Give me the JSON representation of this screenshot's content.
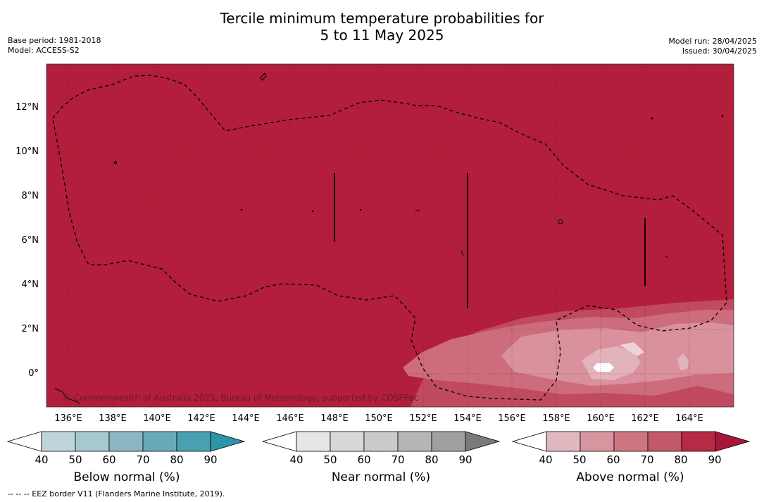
{
  "title_line1": "Tercile minimum temperature probabilities for",
  "title_line2": "5 to 11 May 2025",
  "base_period": "Base period: 1981-2018",
  "model": "Model: ACCESS-S2",
  "model_run": "Model run: 28/04/2025",
  "issued": "Issued: 30/04/2025",
  "copyright": "© Commonwealth of Australia 2025, Bureau of Meteorology, supported by COSPPac",
  "footnote": "--  --  -- EEZ border V11 (Flanders Marine Institute, 2019).",
  "lat_ticks": [
    "12°N",
    "10°N",
    "8°N",
    "6°N",
    "4°N",
    "2°N",
    "0°"
  ],
  "lon_ticks": [
    "136°E",
    "138°E",
    "140°E",
    "142°E",
    "144°E",
    "146°E",
    "148°E",
    "150°E",
    "152°E",
    "154°E",
    "156°E",
    "158°E",
    "160°E",
    "162°E",
    "164°E"
  ],
  "colors": {
    "above_base": "#b21e3b",
    "below": [
      "#ffffff",
      "#bfd5dc",
      "#a8c8cf",
      "#8bb7c2",
      "#6aa9b7",
      "#4a9fb1",
      "#2e94a8"
    ],
    "near": [
      "#ffffff",
      "#e6e6e6",
      "#d8d8d8",
      "#cbcbcb",
      "#b6b6b6",
      "#a0a0a0",
      "#7a7a7a"
    ],
    "above": [
      "#ffffff",
      "#e2b8bf",
      "#d6959f",
      "#cd7581",
      "#c25869",
      "#b72a45",
      "#a8163a"
    ]
  },
  "colorbars": [
    {
      "label": "Below normal (%)",
      "ticks": [
        "40",
        "50",
        "60",
        "70",
        "80",
        "90"
      ]
    },
    {
      "label": "Near normal (%)",
      "ticks": [
        "40",
        "50",
        "60",
        "70",
        "80",
        "90"
      ]
    },
    {
      "label": "Above normal (%)",
      "ticks": [
        "40",
        "50",
        "60",
        "70",
        "80",
        "90"
      ]
    }
  ]
}
